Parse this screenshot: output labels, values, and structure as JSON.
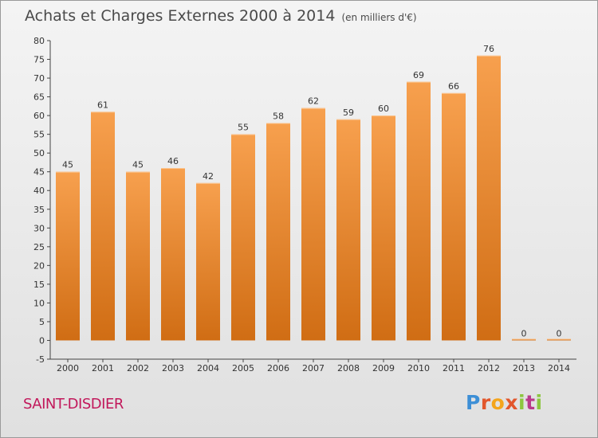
{
  "header": {
    "title": "Achats et Charges Externes 2000 à 2014",
    "unit": "(en milliers d'€)"
  },
  "commune": "SAINT-DISDIER",
  "logo": {
    "text": "Proxiti"
  },
  "colors": {
    "bar_top": "#f7a04e",
    "bar_bottom": "#d06d14",
    "title": "#4a4a4a",
    "commune": "#c2185b"
  },
  "chart_data": {
    "type": "bar",
    "title": "Achats et Charges Externes 2000 à 2014",
    "xlabel": "",
    "ylabel": "",
    "categories": [
      "2000",
      "2001",
      "2002",
      "2003",
      "2004",
      "2005",
      "2006",
      "2007",
      "2008",
      "2009",
      "2010",
      "2011",
      "2012",
      "2013",
      "2014"
    ],
    "values": [
      45,
      61,
      45,
      46,
      42,
      55,
      58,
      62,
      59,
      60,
      69,
      66,
      76,
      0,
      0
    ],
    "ylim": [
      -5,
      80
    ],
    "yticks": [
      -5,
      0,
      5,
      10,
      15,
      20,
      25,
      30,
      35,
      40,
      45,
      50,
      55,
      60,
      65,
      70,
      75,
      80
    ],
    "grid": false,
    "legend": "none"
  }
}
